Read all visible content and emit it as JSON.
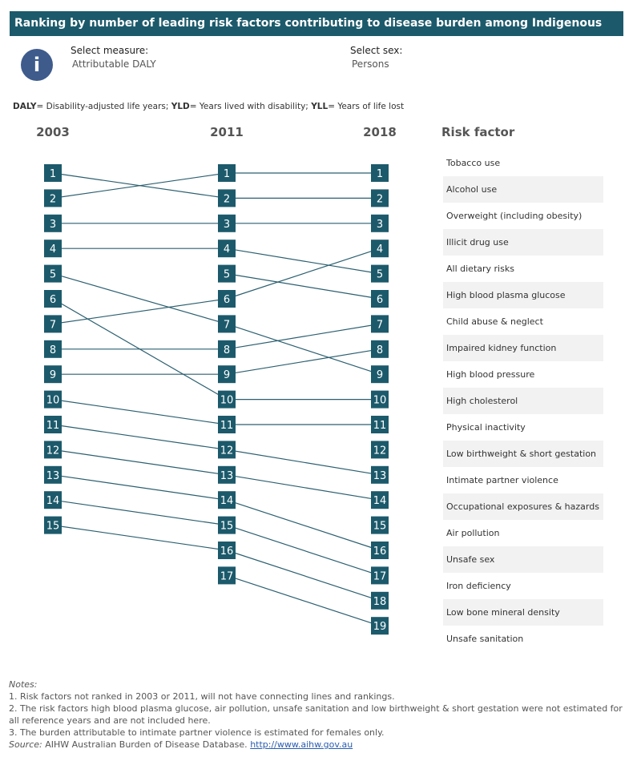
{
  "header": {
    "title": "Ranking by number of leading risk factors contributing to disease burden among Indigenous Australians"
  },
  "controls": [
    {
      "label": "Select measure:",
      "value": "Attributable DALY"
    },
    {
      "label": "Select sex:",
      "value": "Persons"
    }
  ],
  "definitions": [
    {
      "term": "DALY",
      "text": "= Disability-adjusted life years;"
    },
    {
      "term": "YLD",
      "text": "= Years lived with disability;"
    },
    {
      "term": "YLL",
      "text": "= Years of life lost"
    }
  ],
  "years": [
    "2003",
    "2011",
    "2018"
  ],
  "factor_header": "Risk factor",
  "factors": [
    {
      "name": "Tobacco use",
      "ranks": [
        2,
        1,
        1
      ]
    },
    {
      "name": "Alcohol use",
      "ranks": [
        1,
        2,
        2
      ]
    },
    {
      "name": "Overweight (including obesity)",
      "ranks": [
        3,
        3,
        3
      ]
    },
    {
      "name": "Illicit drug use",
      "ranks": [
        7,
        6,
        4
      ]
    },
    {
      "name": "All dietary risks",
      "ranks": [
        4,
        4,
        5
      ]
    },
    {
      "name": "High blood plasma glucose",
      "ranks": [
        null,
        5,
        6
      ]
    },
    {
      "name": "Child abuse & neglect",
      "ranks": [
        8,
        8,
        7
      ]
    },
    {
      "name": "Impaired kidney function",
      "ranks": [
        9,
        9,
        8
      ]
    },
    {
      "name": "High blood pressure",
      "ranks": [
        5,
        7,
        9
      ]
    },
    {
      "name": "High cholesterol",
      "ranks": [
        6,
        10,
        10
      ]
    },
    {
      "name": "Physical inactivity",
      "ranks": [
        10,
        11,
        11
      ]
    },
    {
      "name": "Low birthweight & short gestation",
      "ranks": [
        null,
        null,
        12
      ]
    },
    {
      "name": "Intimate partner violence",
      "ranks": [
        11,
        12,
        13
      ]
    },
    {
      "name": "Occupational exposures & hazards",
      "ranks": [
        12,
        13,
        14
      ]
    },
    {
      "name": "Air pollution",
      "ranks": [
        null,
        null,
        15
      ]
    },
    {
      "name": "Unsafe sex",
      "ranks": [
        13,
        14,
        16
      ]
    },
    {
      "name": "Iron deficiency",
      "ranks": [
        14,
        15,
        17
      ]
    },
    {
      "name": "Low bone mineral density",
      "ranks": [
        15,
        16,
        18
      ]
    },
    {
      "name": "Unsafe sanitation",
      "ranks": [
        null,
        17,
        19
      ]
    }
  ],
  "notes": {
    "heading": "Notes:",
    "items": [
      "1. Risk factors not ranked in 2003 or 2011, will not have connecting lines and rankings.",
      "2. The risk factors high blood plasma glucose, air pollution, unsafe sanitation and low birthweight & short gestation were not estimated for all reference years and are not included here.",
      "3. The burden attributable to intimate partner violence is estimated for females only."
    ],
    "source_label": "Source:",
    "source_text": "AIHW Australian Burden of Disease Database.",
    "source_link": "http://www.aihw.gov.au"
  }
}
